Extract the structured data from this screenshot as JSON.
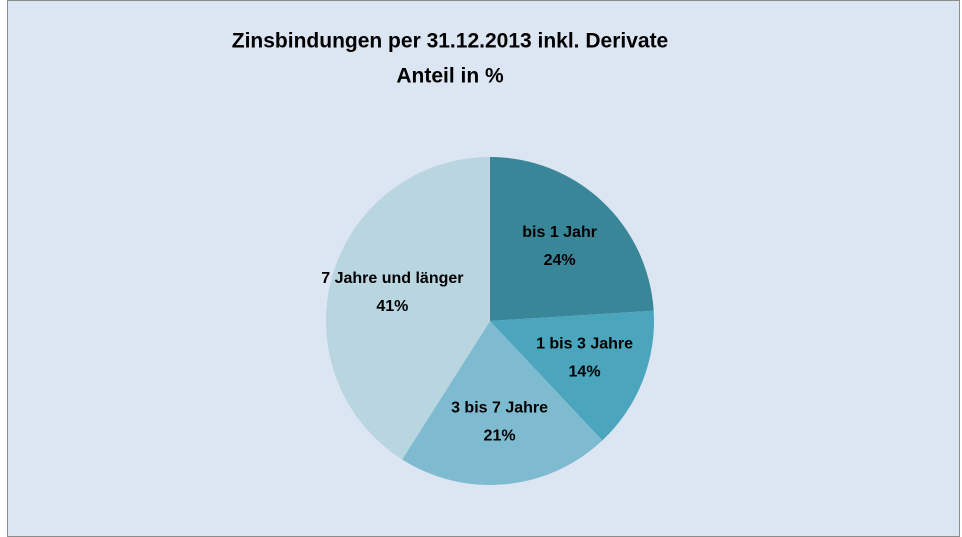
{
  "chart_data": {
    "type": "pie",
    "title": "Zinsbindungen per 31.12.2013 inkl. Derivate",
    "subtitle": "Anteil in %",
    "categories": [
      "bis 1 Jahr",
      "1 bis 3 Jahre",
      "3 bis 7 Jahre",
      "7 Jahre und länger"
    ],
    "values": [
      24,
      14,
      21,
      41
    ],
    "value_labels": [
      "24%",
      "14%",
      "21%",
      "41%"
    ],
    "colors": [
      "#3a8699",
      "#4aa5bd",
      "#7fbbd0",
      "#b8d5e0"
    ]
  }
}
